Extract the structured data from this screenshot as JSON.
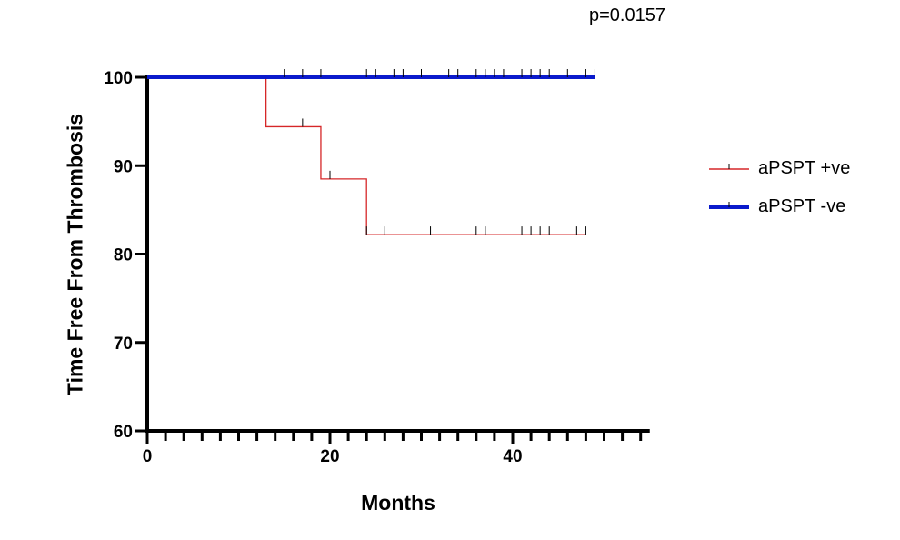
{
  "annotation": "p=0.0157",
  "chart_data": {
    "type": "line",
    "title": "",
    "xlabel": "Months",
    "ylabel": "Time Free From Thrombosis",
    "xlim": [
      0,
      55
    ],
    "ylim": [
      60,
      100
    ],
    "x_ticks": [
      0,
      20,
      40
    ],
    "x_minor_step": 2,
    "y_ticks": [
      60,
      70,
      80,
      90,
      100
    ],
    "grid": false,
    "legend_position": "right",
    "series": [
      {
        "name": "aPSPT +ve",
        "color": "#d62728",
        "step": true,
        "points": [
          [
            0,
            100
          ],
          [
            13,
            100
          ],
          [
            13,
            94.4
          ],
          [
            19,
            94.4
          ],
          [
            19,
            88.5
          ],
          [
            24,
            88.5
          ],
          [
            24,
            82.2
          ],
          [
            48,
            82.2
          ]
        ],
        "censored": [
          [
            17,
            94.4
          ],
          [
            20,
            88.5
          ],
          [
            24,
            82.2
          ],
          [
            26,
            82.2
          ],
          [
            31,
            82.2
          ],
          [
            36,
            82.2
          ],
          [
            37,
            82.2
          ],
          [
            41,
            82.2
          ],
          [
            42,
            82.2
          ],
          [
            43,
            82.2
          ],
          [
            44,
            82.2
          ],
          [
            47,
            82.2
          ],
          [
            48,
            82.2
          ]
        ]
      },
      {
        "name": "aPSPT -ve",
        "color": "#0a1acc",
        "step": true,
        "points": [
          [
            0,
            100
          ],
          [
            49,
            100
          ]
        ],
        "censored": [
          [
            15,
            100
          ],
          [
            17,
            100
          ],
          [
            19,
            100
          ],
          [
            24,
            100
          ],
          [
            25,
            100
          ],
          [
            27,
            100
          ],
          [
            28,
            100
          ],
          [
            30,
            100
          ],
          [
            33,
            100
          ],
          [
            34,
            100
          ],
          [
            36,
            100
          ],
          [
            37,
            100
          ],
          [
            38,
            100
          ],
          [
            39,
            100
          ],
          [
            41,
            100
          ],
          [
            42,
            100
          ],
          [
            43,
            100
          ],
          [
            44,
            100
          ],
          [
            46,
            100
          ],
          [
            48,
            100
          ],
          [
            49,
            100
          ]
        ]
      }
    ]
  }
}
